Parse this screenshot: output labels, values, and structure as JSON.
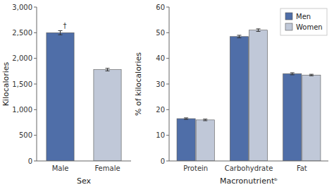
{
  "chart_data": [
    {
      "type": "bar",
      "categories": [
        "Male",
        "Female"
      ],
      "values": [
        2500,
        1780
      ],
      "errors": [
        40,
        25
      ],
      "colors": [
        "#4f6ea8",
        "#c0c8d8"
      ],
      "ylabel": "Kilocalories",
      "xlabel": "Sex",
      "ylim": [
        0,
        3000
      ],
      "yticks": [
        0,
        500,
        {
          "value": 1000,
          "label": "1,000"
        },
        {
          "value": 1500,
          "label": "1,500"
        },
        {
          "value": 2000,
          "label": "2,000"
        },
        {
          "value": 2500,
          "label": "2,500"
        },
        {
          "value": 3000,
          "label": "3,000"
        }
      ],
      "annotations": [
        {
          "text": "†",
          "category": "Male"
        }
      ]
    },
    {
      "type": "bar",
      "categories": [
        "Protein",
        "Carbohydrate",
        "Fat"
      ],
      "series": [
        {
          "name": "Men",
          "color": "#4f6ea8",
          "values": [
            16.5,
            48.5,
            34.0
          ],
          "errors": [
            0.3,
            0.5,
            0.4
          ]
        },
        {
          "name": "Women",
          "color": "#c0c8d8",
          "values": [
            16.0,
            51.0,
            33.5
          ],
          "errors": [
            0.3,
            0.5,
            0.3
          ]
        }
      ],
      "ylabel": "% of kilocalories",
      "xlabel": "Macronutrientᵇ",
      "ylim": [
        0,
        60
      ],
      "yticks": [
        0,
        10,
        20,
        30,
        40,
        50,
        60
      ],
      "legend": "upper-right"
    }
  ]
}
